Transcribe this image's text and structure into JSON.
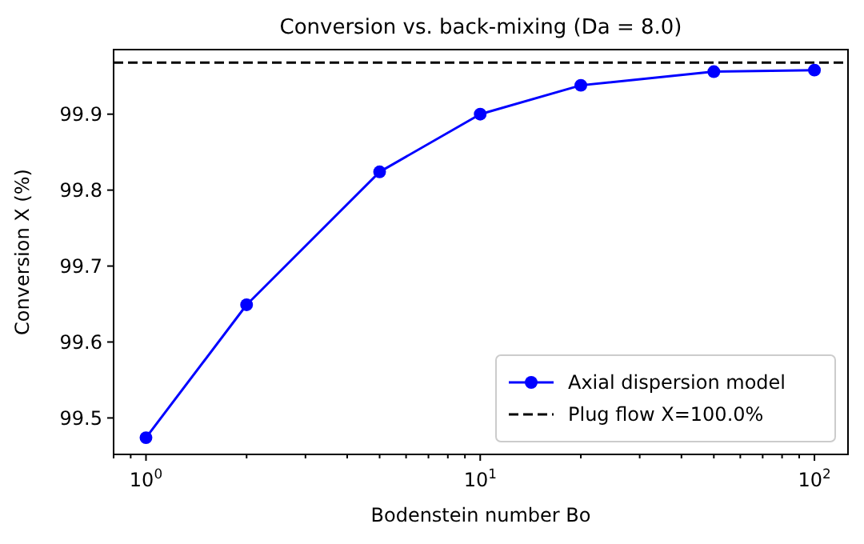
{
  "chart_data": {
    "type": "line",
    "title": "Conversion vs. back-mixing (Da = 8.0)",
    "xlabel": "Bodenstein number Bo",
    "ylabel": "Conversion X (%)",
    "x": [
      1,
      2,
      5,
      10,
      20,
      50,
      100
    ],
    "series": [
      {
        "name": "Axial dispersion model",
        "color": "#0000ff",
        "values": [
          99.474,
          99.649,
          99.824,
          99.9,
          99.938,
          99.956,
          99.958
        ]
      }
    ],
    "ref_lines": [
      {
        "axis": "y",
        "value": 99.968,
        "label": "Plug flow X=100.0%",
        "color": "#000000",
        "line_style": "dashed"
      }
    ],
    "log": "x",
    "marker": "circle",
    "line_style": "solid",
    "legend": "bottom right",
    "grid": false,
    "xlim": [
      0.8,
      126
    ],
    "xticks": [
      {
        "value": 1,
        "label": "10$^{0}$"
      },
      {
        "value": 10,
        "label": "10$^{1}$"
      },
      {
        "value": 100,
        "label": "10$^{2}$"
      }
    ],
    "ylim": [
      99.452,
      99.985
    ],
    "yticks": [
      99.5,
      99.6,
      99.7,
      99.8,
      99.9
    ]
  }
}
